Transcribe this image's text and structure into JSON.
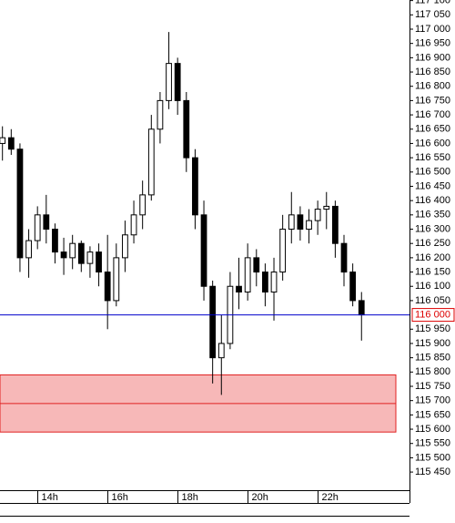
{
  "chart_data": {
    "type": "candlestick",
    "x": [
      13.0,
      13.25,
      13.5,
      13.75,
      14.0,
      14.25,
      14.5,
      14.75,
      15.0,
      15.25,
      15.5,
      15.75,
      16.0,
      16.25,
      16.5,
      16.75,
      17.0,
      17.25,
      17.5,
      17.75,
      18.0,
      18.25,
      18.5,
      18.75,
      19.0,
      19.25,
      19.5,
      19.75,
      20.0,
      20.25,
      20.5,
      20.75,
      21.0,
      21.25,
      21.5,
      21.75,
      22.0,
      22.25,
      22.5,
      22.75,
      23.0,
      23.25
    ],
    "open": [
      116600,
      116620,
      116580,
      116200,
      116260,
      116350,
      116300,
      116220,
      116200,
      116250,
      116180,
      116220,
      116150,
      116050,
      116200,
      116280,
      116350,
      116420,
      116650,
      116750,
      116880,
      116750,
      116550,
      116350,
      116100,
      115850,
      115900,
      116100,
      116080,
      116200,
      116150,
      116080,
      116150,
      116300,
      116350,
      116300,
      116330,
      116370,
      116380,
      116250,
      116150,
      116050
    ],
    "high": [
      116660,
      116650,
      116600,
      116300,
      116380,
      116420,
      116320,
      116270,
      116280,
      116260,
      116240,
      116250,
      116280,
      116250,
      116330,
      116400,
      116470,
      116700,
      116780,
      116990,
      116900,
      116780,
      116580,
      116400,
      116120,
      116000,
      116150,
      116200,
      116250,
      116230,
      116180,
      116200,
      116350,
      116430,
      116380,
      116370,
      116400,
      116430,
      116400,
      116280,
      116180,
      116080
    ],
    "low": [
      116540,
      116560,
      116150,
      116130,
      116230,
      116250,
      116180,
      116140,
      116160,
      116150,
      116130,
      116100,
      115950,
      116030,
      116150,
      116250,
      116300,
      116400,
      116600,
      116720,
      116700,
      116500,
      116300,
      116050,
      115760,
      115720,
      115880,
      116020,
      116050,
      116100,
      116030,
      115980,
      116120,
      116250,
      116260,
      116250,
      116280,
      116300,
      116200,
      116100,
      116030,
      115910
    ],
    "close": [
      116620,
      116580,
      116200,
      116260,
      116350,
      116300,
      116220,
      116200,
      116250,
      116180,
      116220,
      116150,
      116050,
      116200,
      116280,
      116350,
      116420,
      116650,
      116750,
      116880,
      116750,
      116550,
      116350,
      116100,
      115850,
      115900,
      116100,
      116080,
      116200,
      116150,
      116080,
      116150,
      116300,
      116350,
      116300,
      116330,
      116370,
      116380,
      116250,
      116150,
      116050,
      116000
    ],
    "xlim": [
      12.93,
      24.62
    ],
    "xticks": [
      {
        "value": 14,
        "label": "14h"
      },
      {
        "value": 16,
        "label": "16h"
      },
      {
        "value": 18,
        "label": "18h"
      },
      {
        "value": 20,
        "label": "20h"
      },
      {
        "value": 22,
        "label": "22h"
      }
    ],
    "ylim": [
      115412,
      117102
    ],
    "yticks": [
      {
        "value": 115450,
        "label": "115 450"
      },
      {
        "value": 115500,
        "label": "115 500"
      },
      {
        "value": 115550,
        "label": "115 550"
      },
      {
        "value": 115600,
        "label": "115 600"
      },
      {
        "value": 115650,
        "label": "115 650"
      },
      {
        "value": 115700,
        "label": "115 700"
      },
      {
        "value": 115750,
        "label": "115 750"
      },
      {
        "value": 115800,
        "label": "115 800"
      },
      {
        "value": 115850,
        "label": "115 850"
      },
      {
        "value": 115900,
        "label": "115 900"
      },
      {
        "value": 115950,
        "label": "115 950"
      },
      {
        "value": 116050,
        "label": "116 050"
      },
      {
        "value": 116100,
        "label": "116 100"
      },
      {
        "value": 116150,
        "label": "116 150"
      },
      {
        "value": 116200,
        "label": "116 200"
      },
      {
        "value": 116250,
        "label": "116 250"
      },
      {
        "value": 116300,
        "label": "116 300"
      },
      {
        "value": 116350,
        "label": "116 350"
      },
      {
        "value": 116400,
        "label": "116 400"
      },
      {
        "value": 116450,
        "label": "116 450"
      },
      {
        "value": 116500,
        "label": "116 500"
      },
      {
        "value": 116550,
        "label": "116 550"
      },
      {
        "value": 116600,
        "label": "116 600"
      },
      {
        "value": 116650,
        "label": "116 650"
      },
      {
        "value": 116700,
        "label": "116 700"
      },
      {
        "value": 116750,
        "label": "116 750"
      },
      {
        "value": 116800,
        "label": "116 800"
      },
      {
        "value": 116850,
        "label": "116 850"
      },
      {
        "value": 116900,
        "label": "116 900"
      },
      {
        "value": 116950,
        "label": "116 950"
      },
      {
        "value": 117000,
        "label": "117 000"
      },
      {
        "value": 117050,
        "label": "117 050"
      },
      {
        "value": 117100,
        "label": "117 100"
      }
    ],
    "current_price": {
      "value": 116000,
      "label": "116 000",
      "color": "#0000cc",
      "label_color": "#dd0000"
    },
    "zone": {
      "top": 115790,
      "bottom": 115590,
      "mid": 115690,
      "fill": "#f7b8b8",
      "stroke": "#e02020"
    },
    "up_color": "#ffffff",
    "down_color": "#000000"
  }
}
